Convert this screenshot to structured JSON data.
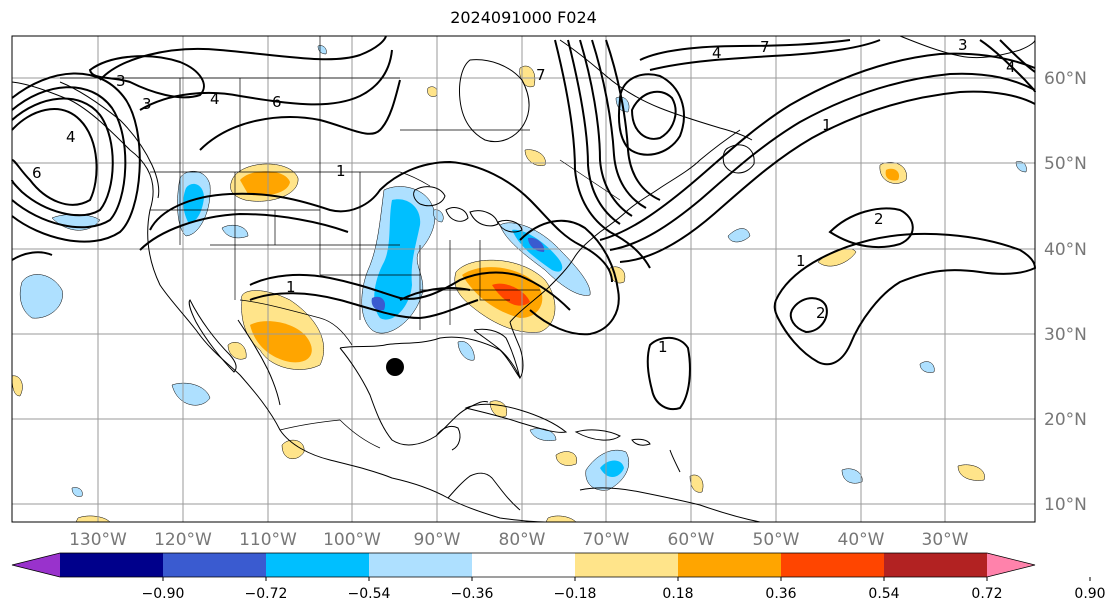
{
  "title": "2024091000 F024",
  "lon_labels": [
    "130°W",
    "120°W",
    "110°W",
    "100°W",
    "90°W",
    "80°W",
    "70°W",
    "60°W",
    "50°W",
    "40°W",
    "30°W"
  ],
  "lat_labels": [
    "60°N",
    "50°N",
    "40°N",
    "30°N",
    "20°N",
    "10°N"
  ],
  "contour_labels": [
    "3",
    "3",
    "4",
    "6",
    "4",
    "1",
    "6",
    "1",
    "7",
    "4",
    "3",
    "4",
    "7",
    "1",
    "2",
    "1",
    "2",
    "1"
  ],
  "colorbar": {
    "ticks": [
      "−0.90",
      "−0.72",
      "−0.54",
      "−0.36",
      "−0.18",
      "0.18",
      "0.36",
      "0.54",
      "0.72",
      "0.90"
    ],
    "colors": [
      "#9932cc",
      "#00008b",
      "#3a5bd0",
      "#00bfff",
      "#aee0ff",
      "#ffffff",
      "#ffe48a",
      "#ffa500",
      "#ff4500",
      "#b22222",
      "#ff82ab"
    ]
  },
  "marker": "storm-center-dot"
}
